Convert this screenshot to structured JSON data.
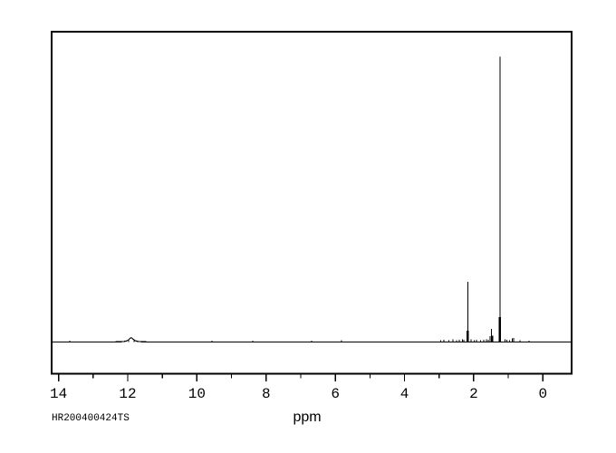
{
  "window": {
    "background_color": "#ffffff",
    "trace_color": "#000000"
  },
  "chart_data": {
    "type": "line",
    "kind": "1H NMR spectrum",
    "title": "",
    "xlabel": "ppm",
    "ylabel": "",
    "sample_id": "HR200400424TS",
    "grid": false,
    "legend": false,
    "x_axis": {
      "xlim_left": 14.2,
      "xlim_right": -0.83,
      "major_ticks": [
        14,
        12,
        10,
        8,
        6,
        4,
        2,
        0
      ],
      "minor_ticks": [
        13,
        11,
        9,
        7,
        5,
        3,
        1
      ]
    },
    "peaks": [
      {
        "name": "broad-oh-hump",
        "type": "broad",
        "ppm": 11.9,
        "rel": 0.015,
        "width_ppm": 0.08
      },
      {
        "name": "peak-2.17",
        "type": "sharp",
        "base_rel": 0.04,
        "lines": [
          {
            "ppm": 2.17,
            "rel": 0.211
          }
        ]
      },
      {
        "name": "multiplet-1.49",
        "type": "sharp",
        "lines": [
          {
            "ppm": 1.525,
            "rel": 0.02
          },
          {
            "ppm": 1.49,
            "rel": 0.046
          },
          {
            "ppm": 1.455,
            "rel": 0.022
          }
        ]
      },
      {
        "name": "main-peak-1.24",
        "type": "sharp",
        "base_rel": 0.088,
        "lines": [
          {
            "ppm": 1.24,
            "rel": 1.0
          }
        ]
      },
      {
        "name": "ch3-bump-0.86",
        "type": "sharp",
        "lines": [
          {
            "ppm": 0.885,
            "rel": 0.012
          },
          {
            "ppm": 0.845,
            "rel": 0.015
          }
        ]
      }
    ],
    "noise_points": [
      {
        "ppm": 13.68,
        "rel": 0.005
      },
      {
        "ppm": 11.98,
        "rel": 0.006
      },
      {
        "ppm": 11.82,
        "rel": 0.005
      },
      {
        "ppm": 9.56,
        "rel": 0.005
      },
      {
        "ppm": 8.39,
        "rel": 0.005
      },
      {
        "ppm": 6.69,
        "rel": 0.005
      },
      {
        "ppm": 5.82,
        "rel": 0.007
      },
      {
        "ppm": 2.95,
        "rel": 0.006
      },
      {
        "ppm": 2.86,
        "rel": 0.008
      },
      {
        "ppm": 2.72,
        "rel": 0.006
      },
      {
        "ppm": 2.6,
        "rel": 0.009
      },
      {
        "ppm": 2.5,
        "rel": 0.007
      },
      {
        "ppm": 2.42,
        "rel": 0.008
      },
      {
        "ppm": 2.33,
        "rel": 0.01
      },
      {
        "ppm": 2.28,
        "rel": 0.008
      },
      {
        "ppm": 2.08,
        "rel": 0.009
      },
      {
        "ppm": 1.99,
        "rel": 0.007
      },
      {
        "ppm": 1.92,
        "rel": 0.008
      },
      {
        "ppm": 1.8,
        "rel": 0.007
      },
      {
        "ppm": 1.71,
        "rel": 0.008
      },
      {
        "ppm": 1.63,
        "rel": 0.01
      },
      {
        "ppm": 1.58,
        "rel": 0.008
      },
      {
        "ppm": 1.1,
        "rel": 0.01
      },
      {
        "ppm": 1.04,
        "rel": 0.008
      },
      {
        "ppm": 0.97,
        "rel": 0.006
      },
      {
        "ppm": 0.66,
        "rel": 0.006
      },
      {
        "ppm": 0.4,
        "rel": 0.005
      }
    ]
  }
}
